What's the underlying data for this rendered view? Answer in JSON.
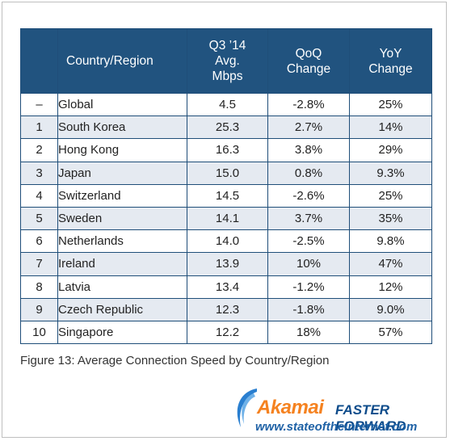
{
  "chart_data": {
    "type": "table",
    "columns": [
      "",
      "Country/Region",
      "Q3 ’14\nAvg.\nMbps",
      "QoQ\nChange",
      "YoY\nChange"
    ],
    "rows": [
      [
        "–",
        "Global",
        "4.5",
        "-2.8%",
        "25%"
      ],
      [
        "1",
        "South Korea",
        "25.3",
        "2.7%",
        "14%"
      ],
      [
        "2",
        "Hong Kong",
        "16.3",
        "3.8%",
        "29%"
      ],
      [
        "3",
        "Japan",
        "15.0",
        "0.8%",
        "9.3%"
      ],
      [
        "4",
        "Switzerland",
        "14.5",
        "-2.6%",
        "25%"
      ],
      [
        "5",
        "Sweden",
        "14.1",
        "3.7%",
        "35%"
      ],
      [
        "6",
        "Netherlands",
        "14.0",
        "-2.5%",
        "9.8%"
      ],
      [
        "7",
        "Ireland",
        "13.9",
        "10%",
        "47%"
      ],
      [
        "8",
        "Latvia",
        "13.4",
        "-1.2%",
        "12%"
      ],
      [
        "9",
        "Czech Republic",
        "12.3",
        "-1.8%",
        "9.0%"
      ],
      [
        "10",
        "Singapore",
        "12.2",
        "18%",
        "57%"
      ]
    ],
    "caption": "Figure 13: Average Connection Speed by Country/Region"
  },
  "branding": {
    "logo_text": "Akamai",
    "tagline": "FASTER FORWARD",
    "url": "www.stateoftheinternet.com"
  },
  "colors": {
    "header_bg": "#21537f",
    "stripe_row": "#e5eaf1",
    "logo_orange": "#f58220",
    "logo_blue": "#0e4c8b"
  }
}
